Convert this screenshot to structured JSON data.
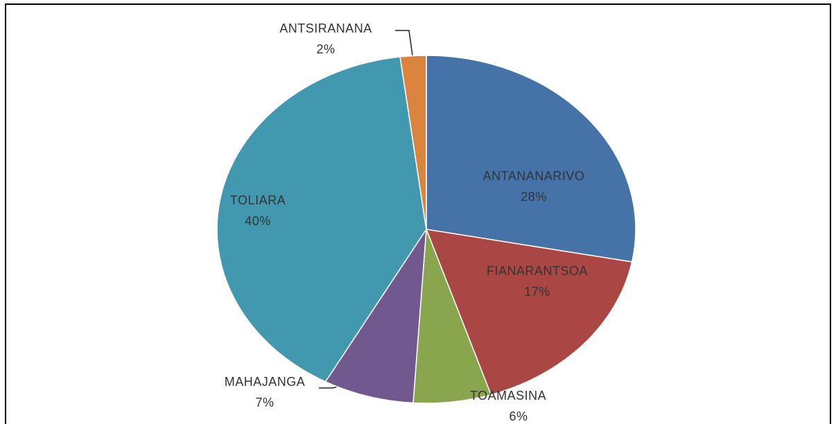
{
  "chart_data": {
    "type": "pie",
    "categories": [
      "ANTANANARIVO",
      "FIANARANTSOA",
      "TOAMASINA",
      "MAHAJANGA",
      "TOLIARA",
      "ANTSIRANANA"
    ],
    "values": [
      28,
      17,
      6,
      7,
      40,
      2
    ],
    "value_labels": [
      "28%",
      "17%",
      "6%",
      "7%",
      "40%",
      "2%"
    ],
    "colors": [
      "#4572a7",
      "#aa4643",
      "#89a54e",
      "#71588f",
      "#4198af",
      "#db843d"
    ]
  }
}
